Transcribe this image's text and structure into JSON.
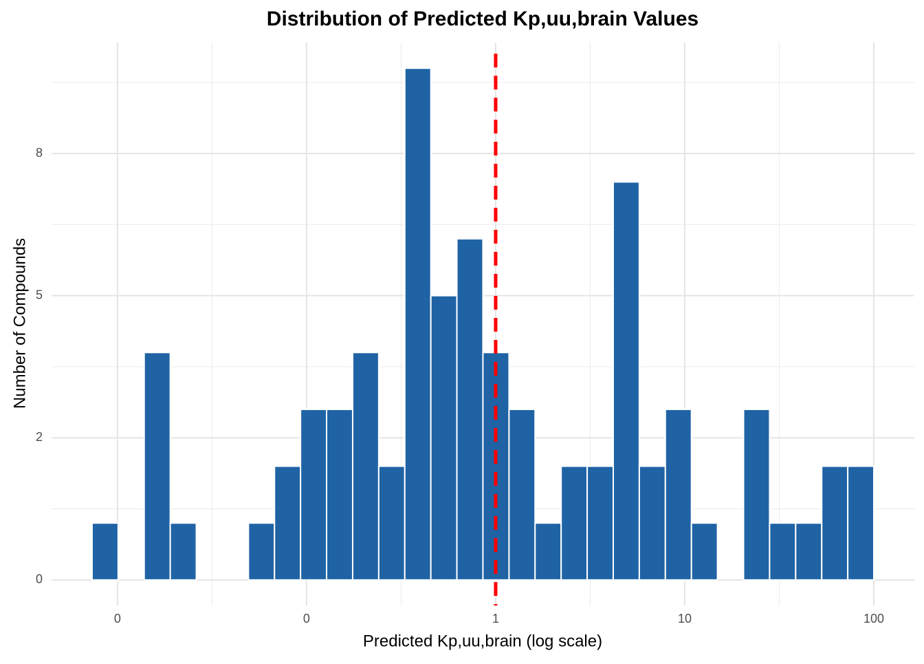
{
  "chart_data": {
    "type": "histogram",
    "title": "Distribution of Predicted Kp,uu,brain Values",
    "x_label": "Predicted Kp,uu,brain (log scale)",
    "y_label": "Number of Compounds",
    "bins": [
      0.00734,
      0.01008,
      0.01384,
      0.01901,
      0.02611,
      0.03586,
      0.04926,
      0.06766,
      0.09292,
      0.1276,
      0.1753,
      0.2408,
      0.3307,
      0.4542,
      0.6237,
      0.8566,
      1.177,
      1.616,
      2.22,
      3.049,
      4.187,
      5.751,
      7.899,
      10.85,
      14.9,
      20.47,
      28.11,
      38.61,
      53.04,
      72.84,
      100
    ],
    "values": [
      1,
      0,
      4,
      1,
      0,
      0,
      1,
      2,
      3,
      3,
      4,
      2,
      9,
      5,
      6,
      4,
      3,
      1,
      2,
      2,
      7,
      2,
      3,
      1,
      0,
      3,
      1,
      1,
      2,
      2
    ],
    "color": "#1f63a5",
    "xlog": true,
    "xlim": [
      0.00448,
      163.9
    ],
    "xticks": [
      {
        "value": 0.01,
        "label": "0"
      },
      {
        "value": 0.1,
        "label": "0"
      },
      1,
      10,
      100
    ],
    "ylim": [
      -0.45,
      9.45
    ],
    "yticks": [
      0,
      {
        "value": 2.5,
        "label": "2"
      },
      5,
      {
        "value": 7.5,
        "label": "8"
      }
    ],
    "grid": true,
    "reference_line": {
      "x": 1,
      "color": "#ff0000"
    }
  }
}
